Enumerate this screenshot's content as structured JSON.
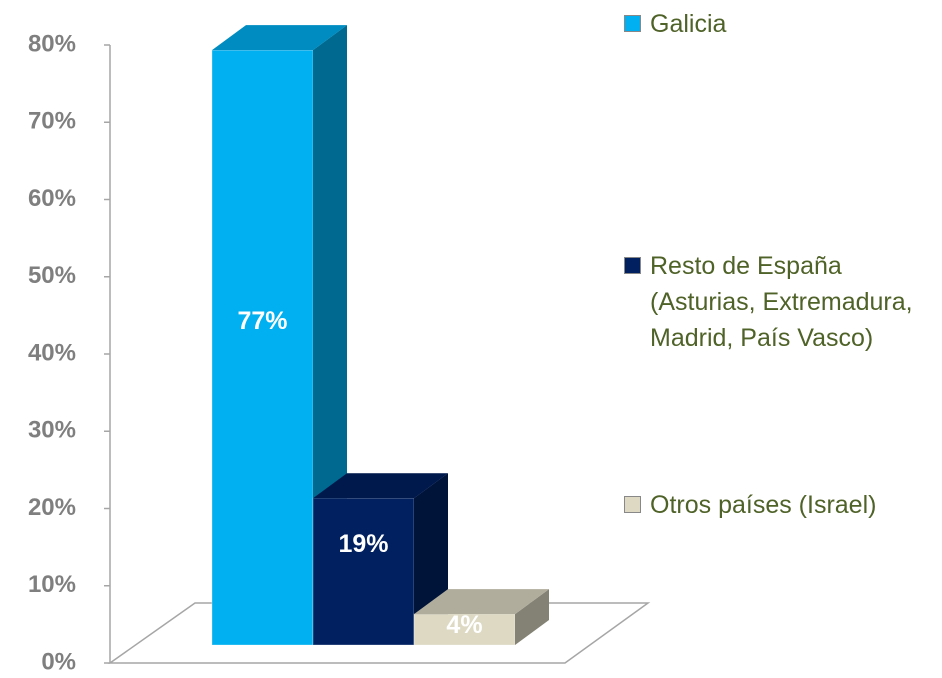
{
  "chart_data": {
    "type": "bar3d",
    "series": [
      {
        "name": "Galicia",
        "color": "#00b0f0",
        "values": [
          77
        ],
        "value_labels": [
          "77%"
        ]
      },
      {
        "name": "Resto de España (Asturias, Extremadura, Madrid, País Vasco)",
        "color": "#002060",
        "values": [
          19
        ],
        "value_labels": [
          "19%"
        ]
      },
      {
        "name": "Otros países (Israel)",
        "color": "#ddd9c3",
        "values": [
          4
        ],
        "value_labels": [
          "4%"
        ]
      }
    ],
    "ylim": [
      0,
      80
    ],
    "yticks": [
      {
        "value": 0,
        "label": "0%"
      },
      {
        "value": 10,
        "label": "10%"
      },
      {
        "value": 20,
        "label": "20%"
      },
      {
        "value": 30,
        "label": "30%"
      },
      {
        "value": 40,
        "label": "40%"
      },
      {
        "value": 50,
        "label": "50%"
      },
      {
        "value": 60,
        "label": "60%"
      },
      {
        "value": 70,
        "label": "70%"
      },
      {
        "value": 80,
        "label": "80%"
      }
    ],
    "legend": "right"
  }
}
